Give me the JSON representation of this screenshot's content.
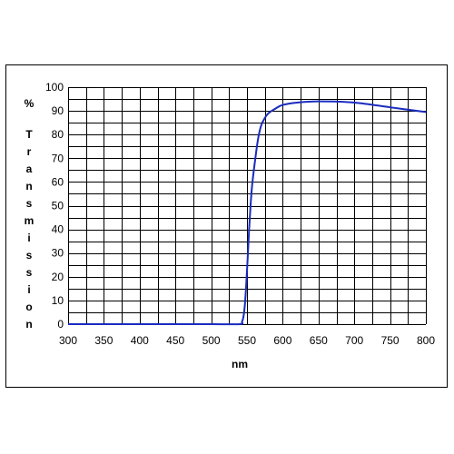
{
  "chart_data": {
    "type": "line",
    "xlabel": "nm",
    "ylabel_unit": "%",
    "ylabel_letters": [
      "T",
      "r",
      "a",
      "n",
      "s",
      "m",
      "i",
      "s",
      "s",
      "i",
      "o",
      "n"
    ],
    "xlim": [
      300,
      800
    ],
    "ylim": [
      0,
      100
    ],
    "x_ticks": [
      "300",
      "350",
      "400",
      "450",
      "500",
      "550",
      "600",
      "650",
      "700",
      "750",
      "800"
    ],
    "y_ticks": [
      "0",
      "10",
      "20",
      "30",
      "40",
      "50",
      "60",
      "70",
      "80",
      "90",
      "100"
    ],
    "grid": true,
    "series_color": "#1a2bbf",
    "series": [
      {
        "x": [
          300,
          400,
          500,
          540,
          543,
          545,
          547,
          549,
          551,
          553,
          555,
          557,
          560,
          563,
          566,
          570,
          575,
          580,
          590,
          600,
          620,
          650,
          700,
          750,
          800
        ],
        "values": [
          0,
          0,
          0,
          0,
          1,
          3,
          8,
          17,
          28,
          40,
          50,
          58,
          66,
          73,
          79,
          84,
          87,
          89,
          91,
          92.5,
          93.5,
          94,
          93.5,
          91.5,
          89.5
        ]
      }
    ]
  }
}
